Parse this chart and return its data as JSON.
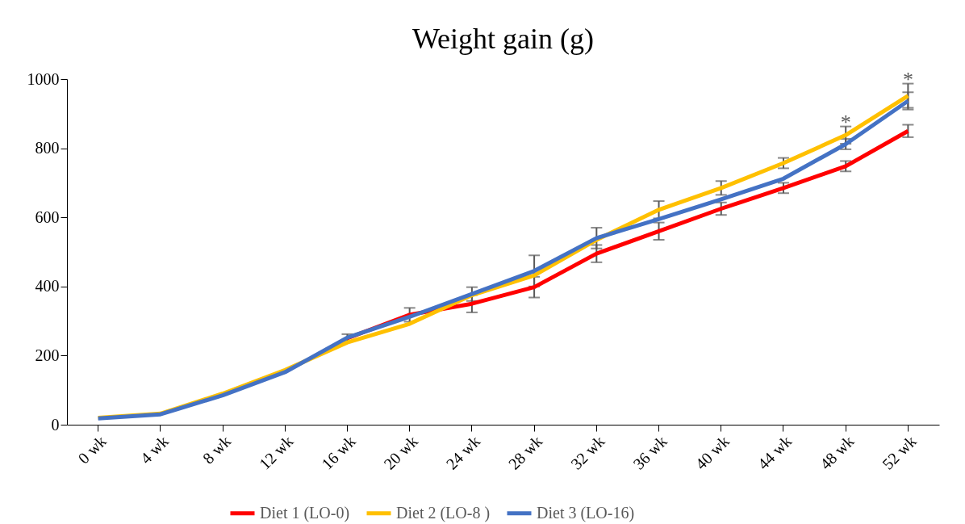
{
  "chart_data": {
    "type": "line",
    "title": "Weight gain (g)",
    "categories": [
      "0 wk",
      "4 wk",
      "8 wk",
      "12 wk",
      "16 wk",
      "20 wk",
      "24 wk",
      "28 wk",
      "32 wk",
      "36 wk",
      "40 wk",
      "44 wk",
      "48 wk",
      "52 wk"
    ],
    "series": [
      {
        "name": "Diet 1 (LO-0)",
        "color": "#ff0000",
        "values": [
          null,
          null,
          null,
          null,
          250,
          318,
          350,
          398,
          495,
          560,
          625,
          685,
          748,
          850
        ],
        "errors": [
          null,
          null,
          null,
          null,
          null,
          20,
          25,
          30,
          25,
          25,
          18,
          15,
          15,
          18
        ]
      },
      {
        "name": "Diet 2 (LO-8 )",
        "color": "#ffc000",
        "values": [
          20,
          32,
          90,
          158,
          238,
          292,
          375,
          432,
          535,
          622,
          685,
          757,
          838,
          952
        ],
        "errors": [
          null,
          null,
          null,
          null,
          null,
          null,
          null,
          null,
          null,
          25,
          20,
          15,
          25,
          35
        ]
      },
      {
        "name": "Diet 3 (LO-16)",
        "color": "#4472c4",
        "values": [
          18,
          30,
          85,
          152,
          252,
          312,
          378,
          445,
          540,
          595,
          652,
          712,
          812,
          937
        ],
        "errors": [
          null,
          null,
          null,
          null,
          10,
          null,
          20,
          45,
          30,
          null,
          null,
          null,
          15,
          25
        ]
      }
    ],
    "ylim": [
      0,
      1000
    ],
    "yticks": [
      0,
      200,
      400,
      600,
      800,
      1000
    ],
    "grid": false,
    "legend": "bottom",
    "line_style": "solid",
    "marker": "none",
    "annotations": [
      {
        "text": "*",
        "x": "48 wk",
        "y": 863
      },
      {
        "text": "*",
        "x": "52 wk",
        "y": 987
      }
    ]
  }
}
